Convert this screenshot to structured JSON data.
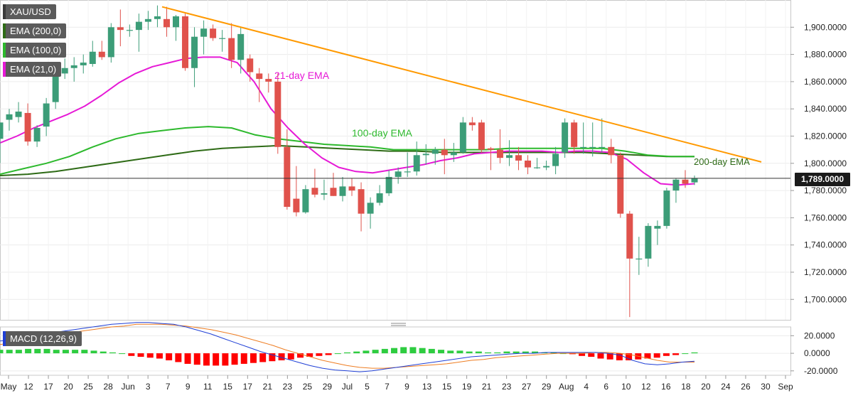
{
  "legend": {
    "symbol": "XAU/USD",
    "ema200": "EMA (200,0)",
    "ema100": "EMA (100,0)",
    "ema21": "EMA (21,0)",
    "macd": "MACD (12,26,9)"
  },
  "colors": {
    "bull": "#3c9d78",
    "bear": "#e0524c",
    "ema21": "#e619d6",
    "ema100": "#2db92d",
    "ema200": "#2e6b16",
    "trendline": "#ff9900",
    "macd_line": "#1f3fd6",
    "signal_line": "#ee7d22",
    "hist_pos": "#2ecc40",
    "hist_neg": "#ff0000"
  },
  "annotations": {
    "ema21_label": "21-day EMA",
    "ema100_label": "100-day EMA",
    "ema200_label": "200-day EMA"
  },
  "current_price": "1,789.0000",
  "chart_data": {
    "type": "candlestick",
    "title": "XAU/USD",
    "timeframe": "daily",
    "ylim": [
      1685,
      1920
    ],
    "y_ticks": [
      "1,700.0000",
      "1,720.0000",
      "1,740.0000",
      "1,760.0000",
      "1,780.0000",
      "1,800.0000",
      "1,820.0000",
      "1,840.0000",
      "1,860.0000",
      "1,880.0000",
      "1,900.0000"
    ],
    "x_ticks": [
      "May",
      "12",
      "17",
      "20",
      "25",
      "28",
      "Jun",
      "3",
      "7",
      "9",
      "11",
      "15",
      "17",
      "21",
      "23",
      "25",
      "29",
      "Jul",
      "5",
      "7",
      "9",
      "13",
      "15",
      "19",
      "21",
      "23",
      "27",
      "29",
      "Aug",
      "4",
      "6",
      "10",
      "12",
      "16",
      "18",
      "20",
      "24",
      "26",
      "30",
      "Sep"
    ],
    "candles": [
      {
        "o": 1818,
        "h": 1830,
        "l": 1800,
        "c": 1830
      },
      {
        "o": 1832,
        "h": 1840,
        "l": 1824,
        "c": 1836
      },
      {
        "o": 1834,
        "h": 1845,
        "l": 1830,
        "c": 1838
      },
      {
        "o": 1837,
        "h": 1844,
        "l": 1813,
        "c": 1816
      },
      {
        "o": 1816,
        "h": 1828,
        "l": 1812,
        "c": 1826
      },
      {
        "o": 1827,
        "h": 1848,
        "l": 1820,
        "c": 1844
      },
      {
        "o": 1845,
        "h": 1868,
        "l": 1840,
        "c": 1866
      },
      {
        "o": 1866,
        "h": 1877,
        "l": 1862,
        "c": 1870
      },
      {
        "o": 1870,
        "h": 1878,
        "l": 1860,
        "c": 1872
      },
      {
        "o": 1872,
        "h": 1880,
        "l": 1866,
        "c": 1874
      },
      {
        "o": 1873,
        "h": 1890,
        "l": 1871,
        "c": 1882
      },
      {
        "o": 1882,
        "h": 1890,
        "l": 1876,
        "c": 1878
      },
      {
        "o": 1878,
        "h": 1903,
        "l": 1874,
        "c": 1900
      },
      {
        "o": 1900,
        "h": 1913,
        "l": 1886,
        "c": 1898
      },
      {
        "o": 1898,
        "h": 1902,
        "l": 1893,
        "c": 1898
      },
      {
        "o": 1898,
        "h": 1910,
        "l": 1882,
        "c": 1904
      },
      {
        "o": 1904,
        "h": 1912,
        "l": 1898,
        "c": 1906
      },
      {
        "o": 1906,
        "h": 1916,
        "l": 1900,
        "c": 1908
      },
      {
        "o": 1906,
        "h": 1915,
        "l": 1893,
        "c": 1900
      },
      {
        "o": 1900,
        "h": 1909,
        "l": 1890,
        "c": 1908
      },
      {
        "o": 1908,
        "h": 1910,
        "l": 1868,
        "c": 1870
      },
      {
        "o": 1870,
        "h": 1900,
        "l": 1856,
        "c": 1893
      },
      {
        "o": 1893,
        "h": 1905,
        "l": 1880,
        "c": 1899
      },
      {
        "o": 1899,
        "h": 1902,
        "l": 1890,
        "c": 1892
      },
      {
        "o": 1892,
        "h": 1898,
        "l": 1882,
        "c": 1892
      },
      {
        "o": 1892,
        "h": 1903,
        "l": 1870,
        "c": 1876
      },
      {
        "o": 1876,
        "h": 1900,
        "l": 1866,
        "c": 1895
      },
      {
        "o": 1877,
        "h": 1880,
        "l": 1860,
        "c": 1867
      },
      {
        "o": 1866,
        "h": 1870,
        "l": 1845,
        "c": 1862
      },
      {
        "o": 1862,
        "h": 1866,
        "l": 1852,
        "c": 1860
      },
      {
        "o": 1860,
        "h": 1866,
        "l": 1807,
        "c": 1812
      },
      {
        "o": 1812,
        "h": 1825,
        "l": 1766,
        "c": 1768
      },
      {
        "o": 1774,
        "h": 1798,
        "l": 1761,
        "c": 1764
      },
      {
        "o": 1764,
        "h": 1784,
        "l": 1763,
        "c": 1781
      },
      {
        "o": 1782,
        "h": 1796,
        "l": 1775,
        "c": 1777
      },
      {
        "o": 1777,
        "h": 1788,
        "l": 1773,
        "c": 1778
      },
      {
        "o": 1782,
        "h": 1793,
        "l": 1776,
        "c": 1776
      },
      {
        "o": 1776,
        "h": 1790,
        "l": 1772,
        "c": 1783
      },
      {
        "o": 1783,
        "h": 1789,
        "l": 1776,
        "c": 1780
      },
      {
        "o": 1781,
        "h": 1786,
        "l": 1750,
        "c": 1763
      },
      {
        "o": 1763,
        "h": 1775,
        "l": 1752,
        "c": 1771
      },
      {
        "o": 1771,
        "h": 1784,
        "l": 1769,
        "c": 1778
      },
      {
        "o": 1778,
        "h": 1795,
        "l": 1776,
        "c": 1790
      },
      {
        "o": 1790,
        "h": 1797,
        "l": 1785,
        "c": 1794
      },
      {
        "o": 1794,
        "h": 1808,
        "l": 1790,
        "c": 1794
      },
      {
        "o": 1794,
        "h": 1816,
        "l": 1791,
        "c": 1806
      },
      {
        "o": 1806,
        "h": 1814,
        "l": 1799,
        "c": 1807
      },
      {
        "o": 1807,
        "h": 1812,
        "l": 1799,
        "c": 1810
      },
      {
        "o": 1810,
        "h": 1818,
        "l": 1792,
        "c": 1806
      },
      {
        "o": 1806,
        "h": 1815,
        "l": 1801,
        "c": 1808
      },
      {
        "o": 1808,
        "h": 1834,
        "l": 1807,
        "c": 1830
      },
      {
        "o": 1830,
        "h": 1834,
        "l": 1824,
        "c": 1828
      },
      {
        "o": 1830,
        "h": 1832,
        "l": 1808,
        "c": 1810
      },
      {
        "o": 1811,
        "h": 1812,
        "l": 1795,
        "c": 1810
      },
      {
        "o": 1810,
        "h": 1825,
        "l": 1800,
        "c": 1804
      },
      {
        "o": 1804,
        "h": 1817,
        "l": 1798,
        "c": 1806
      },
      {
        "o": 1806,
        "h": 1812,
        "l": 1795,
        "c": 1802
      },
      {
        "o": 1802,
        "h": 1806,
        "l": 1792,
        "c": 1797
      },
      {
        "o": 1797,
        "h": 1804,
        "l": 1796,
        "c": 1797
      },
      {
        "o": 1797,
        "h": 1802,
        "l": 1795,
        "c": 1798
      },
      {
        "o": 1798,
        "h": 1812,
        "l": 1792,
        "c": 1807
      },
      {
        "o": 1808,
        "h": 1833,
        "l": 1804,
        "c": 1830
      },
      {
        "o": 1830,
        "h": 1832,
        "l": 1807,
        "c": 1812
      },
      {
        "o": 1812,
        "h": 1830,
        "l": 1807,
        "c": 1812
      },
      {
        "o": 1812,
        "h": 1830,
        "l": 1805,
        "c": 1812
      },
      {
        "o": 1812,
        "h": 1833,
        "l": 1808,
        "c": 1812
      },
      {
        "o": 1812,
        "h": 1818,
        "l": 1800,
        "c": 1806
      },
      {
        "o": 1806,
        "h": 1808,
        "l": 1760,
        "c": 1763
      },
      {
        "o": 1763,
        "h": 1765,
        "l": 1687,
        "c": 1730
      },
      {
        "o": 1730,
        "h": 1746,
        "l": 1718,
        "c": 1730
      },
      {
        "o": 1730,
        "h": 1756,
        "l": 1724,
        "c": 1754
      },
      {
        "o": 1752,
        "h": 1758,
        "l": 1740,
        "c": 1754
      },
      {
        "o": 1754,
        "h": 1782,
        "l": 1752,
        "c": 1780
      },
      {
        "o": 1780,
        "h": 1789,
        "l": 1771,
        "c": 1788
      },
      {
        "o": 1788,
        "h": 1795,
        "l": 1782,
        "c": 1785
      },
      {
        "o": 1786,
        "h": 1791,
        "l": 1784,
        "c": 1789
      }
    ],
    "ema21": [
      1815,
      1820,
      1826,
      1831,
      1836,
      1842,
      1850,
      1859,
      1866,
      1871,
      1874,
      1877,
      1878,
      1878,
      1874,
      1860,
      1840,
      1826,
      1814,
      1804,
      1797,
      1794,
      1793,
      1795,
      1797,
      1799,
      1802,
      1804,
      1807,
      1808,
      1809,
      1809,
      1809,
      1808,
      1809,
      1809,
      1808,
      1803,
      1793,
      1785,
      1784,
      1785
    ],
    "ema100": [
      1792,
      1796,
      1800,
      1805,
      1812,
      1818,
      1822,
      1824,
      1826,
      1827,
      1826,
      1821,
      1818,
      1816,
      1814,
      1813,
      1812,
      1810,
      1810,
      1810,
      1810,
      1810,
      1811,
      1811,
      1811,
      1811,
      1811,
      1809,
      1806,
      1805,
      1805
    ],
    "ema200": [
      1791,
      1792,
      1794,
      1797,
      1800,
      1803,
      1806,
      1809,
      1811,
      1812,
      1813,
      1812,
      1811,
      1810,
      1809,
      1809,
      1808,
      1808,
      1808,
      1808,
      1808,
      1808,
      1807,
      1806,
      1805,
      1805
    ],
    "trendline": {
      "from": 1915,
      "to": 1801
    },
    "macd": {
      "ylim": [
        -25,
        30
      ],
      "y_ticks": [
        "20.0000",
        "0.0000",
        "-20.0000"
      ],
      "macd_line": [
        14,
        15,
        17,
        20,
        23,
        25,
        27,
        29,
        31,
        33,
        34,
        35,
        35,
        34,
        33,
        30,
        26,
        22,
        17,
        12,
        7,
        2,
        -2,
        -6,
        -10,
        -14,
        -17,
        -19,
        -20,
        -21,
        -20,
        -18,
        -16,
        -14,
        -12,
        -10,
        -8,
        -6,
        -4,
        -3,
        -2,
        -1,
        0,
        0,
        1,
        1,
        1,
        1,
        1,
        0,
        -2,
        -8,
        -12,
        -13,
        -12,
        -10,
        -9
      ],
      "signal_line": [
        10,
        12,
        14,
        16,
        19,
        21,
        24,
        26,
        28,
        30,
        31,
        33,
        33,
        33,
        32,
        31,
        29,
        27,
        24,
        21,
        17,
        13,
        9,
        4,
        0,
        -4,
        -8,
        -11,
        -14,
        -16,
        -17,
        -17,
        -16,
        -15,
        -14,
        -13,
        -12,
        -10,
        -8,
        -7,
        -5,
        -4,
        -3,
        -2,
        -1,
        0,
        0,
        0,
        1,
        1,
        0,
        -2,
        -5,
        -8,
        -10,
        -10,
        -10
      ],
      "histogram": [
        4,
        4,
        4,
        5,
        5,
        5,
        4,
        4,
        4,
        4,
        3,
        2,
        1,
        0,
        -3,
        -4,
        -5,
        -6,
        -8,
        -10,
        -12,
        -13,
        -14,
        -14,
        -14,
        -13,
        -12,
        -11,
        -10,
        -9,
        -8,
        -7,
        -5,
        -4,
        -3,
        -2,
        0,
        1,
        2,
        3,
        4,
        5,
        6,
        7,
        7,
        6,
        5,
        4,
        3,
        3,
        2,
        2,
        1,
        1,
        2,
        2,
        2,
        2,
        1,
        1,
        0,
        -1,
        -3,
        -4,
        -6,
        -7,
        -8,
        -8,
        -7,
        -6,
        -5,
        -3,
        -2,
        0,
        1
      ]
    }
  }
}
